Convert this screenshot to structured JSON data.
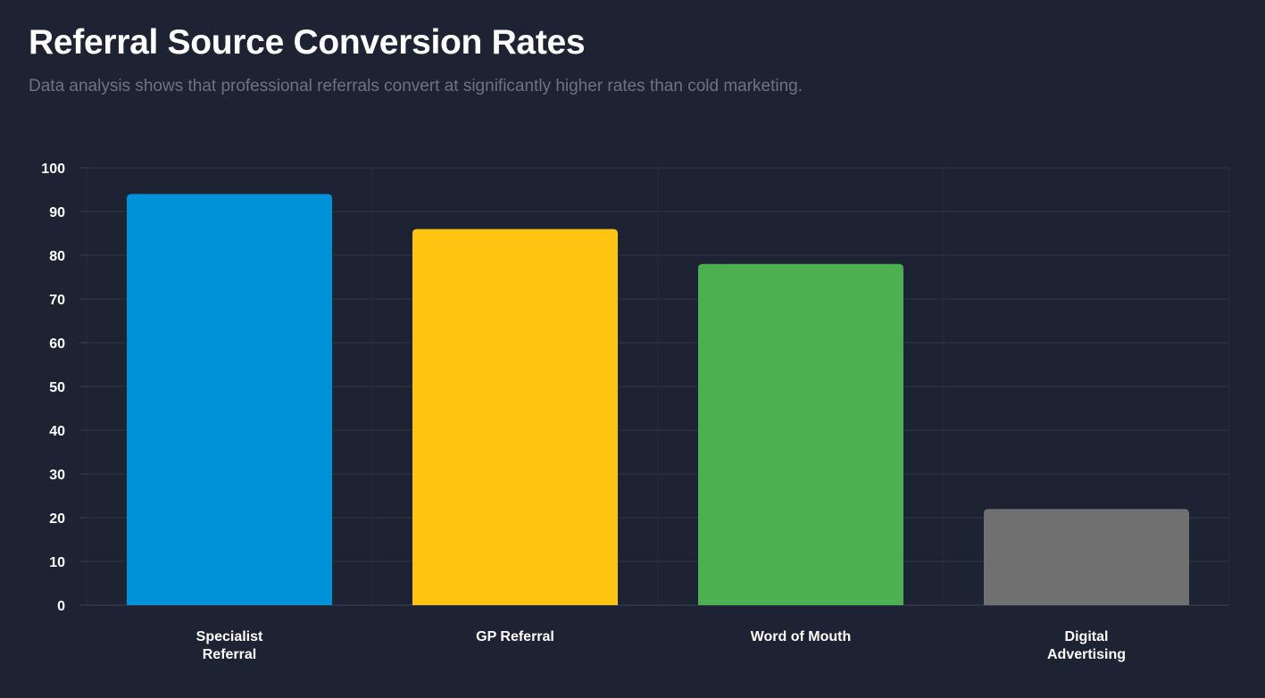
{
  "header": {
    "title": "Referral Source Conversion Rates",
    "subtitle": "Data analysis shows that professional referrals convert at significantly higher rates than cold marketing."
  },
  "chart_data": {
    "type": "bar",
    "categories": [
      [
        "Specialist",
        "Referral"
      ],
      [
        "GP Referral"
      ],
      [
        "Word of Mouth"
      ],
      [
        "Digital",
        "Advertising"
      ]
    ],
    "values": [
      94,
      86,
      78,
      22
    ],
    "colors": [
      "#0092d9",
      "#ffc311",
      "#4caf50",
      "#707070"
    ],
    "ylim": [
      0,
      100
    ],
    "yticks": [
      0,
      10,
      20,
      30,
      40,
      50,
      60,
      70,
      80,
      90,
      100
    ],
    "grid": true,
    "legend": "none"
  }
}
